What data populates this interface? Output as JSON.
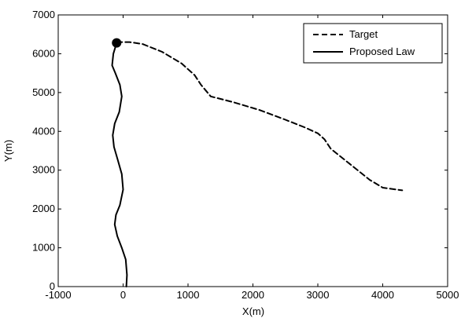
{
  "chart_data": {
    "type": "line",
    "title": "",
    "xlabel": "X(m)",
    "ylabel": "Y(m)",
    "xlim": [
      -1000,
      5000
    ],
    "ylim": [
      0,
      7000
    ],
    "xticks": [
      -1000,
      0,
      1000,
      2000,
      3000,
      4000,
      5000
    ],
    "yticks": [
      0,
      1000,
      2000,
      3000,
      4000,
      5000,
      6000,
      7000
    ],
    "xtick_labels": [
      "-1000",
      "0",
      "1000",
      "2000",
      "3000",
      "4000",
      "5000"
    ],
    "ytick_labels": [
      "0",
      "1000",
      "2000",
      "3000",
      "4000",
      "5000",
      "6000",
      "7000"
    ],
    "grid": false,
    "legend_position": "top-right",
    "series": [
      {
        "name": "Target",
        "style": "dashed",
        "color": "#000000",
        "x": [
          -100,
          100,
          300,
          600,
          900,
          1100,
          1200,
          1350,
          1700,
          2100,
          2500,
          2800,
          3000,
          3100,
          3200,
          3500,
          3800,
          4000,
          4300
        ],
        "y": [
          6300,
          6300,
          6250,
          6050,
          5750,
          5450,
          5200,
          4900,
          4750,
          4550,
          4300,
          4100,
          3950,
          3800,
          3550,
          3150,
          2750,
          2550,
          2480
        ]
      },
      {
        "name": "Proposed Law",
        "style": "solid",
        "color": "#000000",
        "x": [
          -100,
          -150,
          -170,
          -120,
          -50,
          -20,
          -60,
          -130,
          -160,
          -140,
          -80,
          -20,
          0,
          -50,
          -110,
          -130,
          -90,
          -20,
          40,
          60,
          50
        ],
        "y": [
          6280,
          6000,
          5700,
          5500,
          5200,
          4900,
          4500,
          4200,
          3900,
          3600,
          3250,
          2900,
          2500,
          2100,
          1850,
          1600,
          1300,
          1000,
          700,
          300,
          0
        ]
      }
    ],
    "marker": {
      "x": -100,
      "y": 6280
    }
  }
}
